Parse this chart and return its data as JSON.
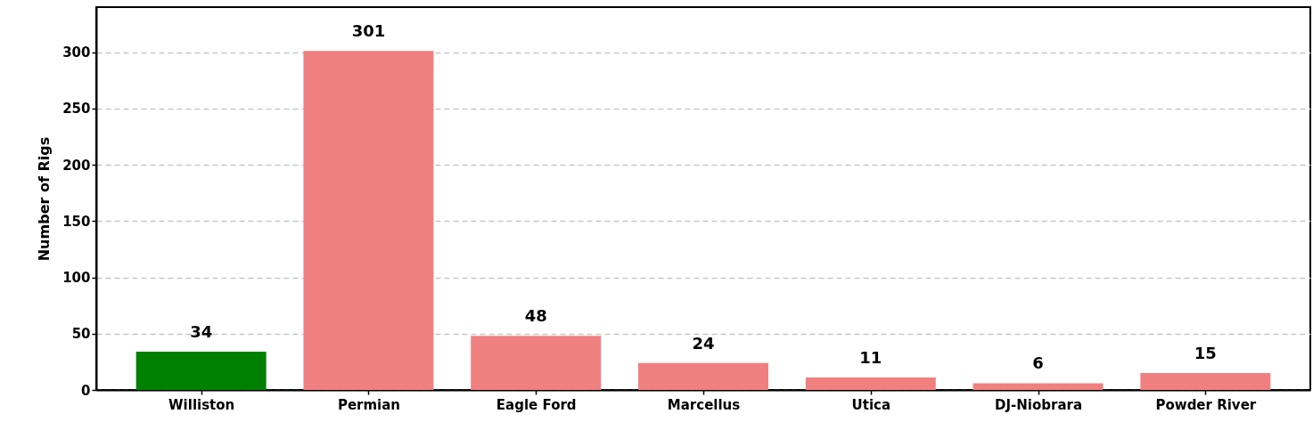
{
  "chart_data": {
    "type": "bar",
    "ylabel": "Number of Rigs",
    "categories": [
      "Williston",
      "Permian",
      "Eagle Ford",
      "Marcellus",
      "Utica",
      "DJ-Niobrara",
      "Powder River"
    ],
    "values": [
      34,
      301,
      48,
      24,
      11,
      6,
      15
    ],
    "colors": [
      "#008000",
      "#f08080",
      "#f08080",
      "#f08080",
      "#f08080",
      "#f08080",
      "#f08080"
    ],
    "ylim": [
      0,
      340
    ],
    "yticks": [
      0,
      50,
      100,
      150,
      200,
      250,
      300
    ],
    "grid": "y",
    "data_labels": true
  }
}
